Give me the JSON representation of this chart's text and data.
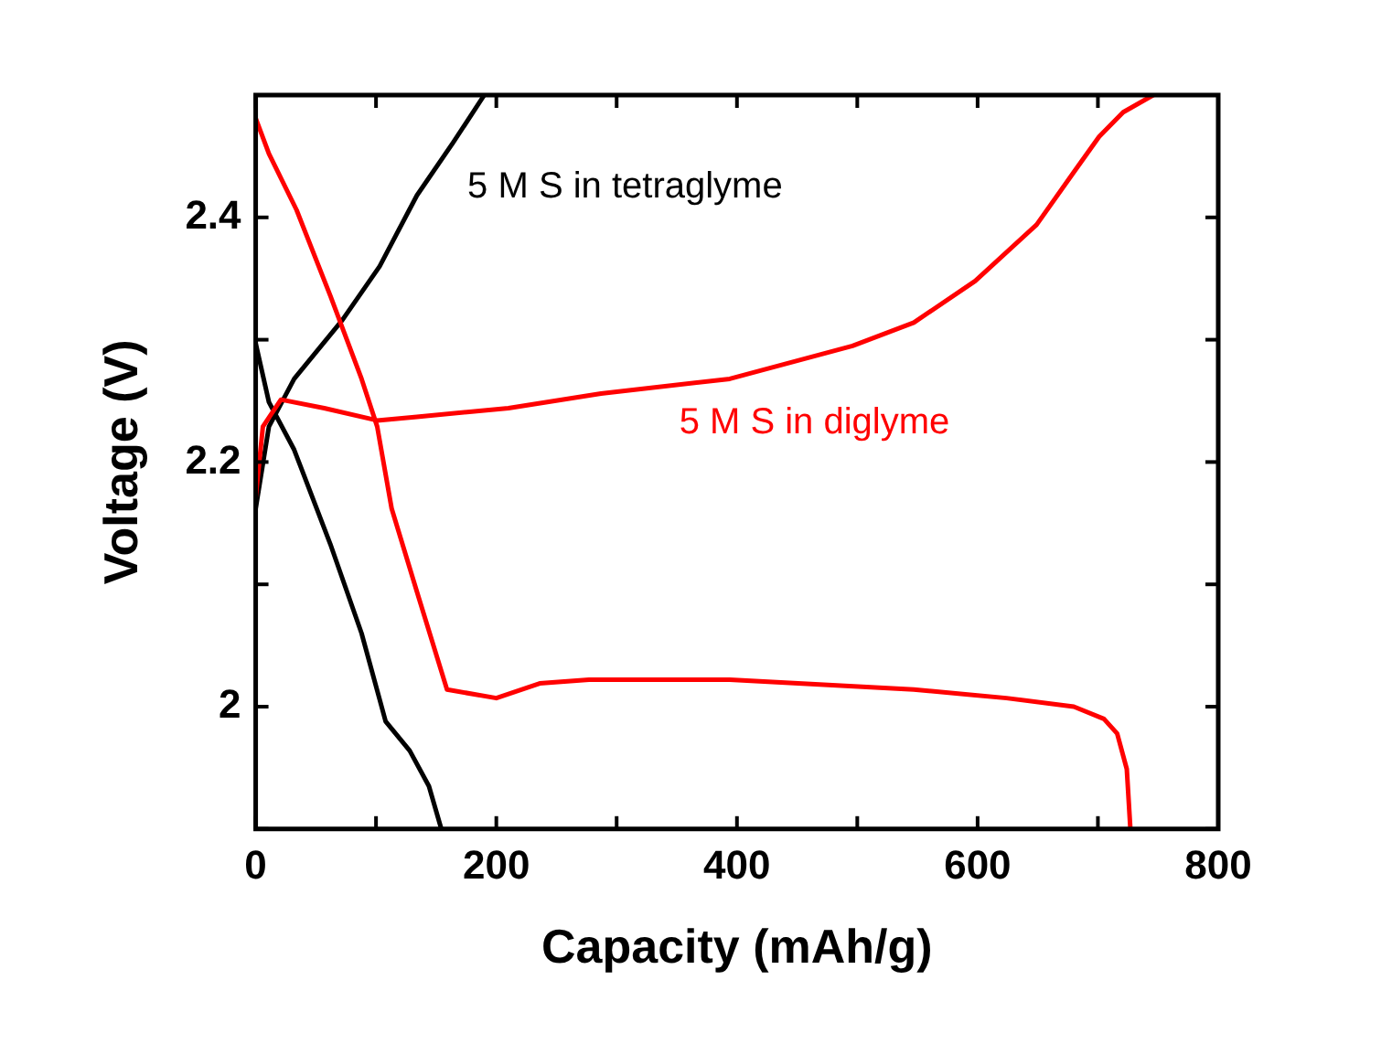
{
  "chart_data": {
    "type": "line",
    "xlabel": "Capacity (mAh/g)",
    "ylabel": "Voltage (V)",
    "xlim": [
      0,
      800
    ],
    "ylim": [
      1.9,
      2.5
    ],
    "xticks": [
      0,
      {
        "value": 100,
        "label": null
      },
      200,
      {
        "value": 300,
        "label": null
      },
      400,
      {
        "value": 500,
        "label": null
      },
      600,
      {
        "value": 700,
        "label": null
      },
      800
    ],
    "yticks": [
      {
        "value": 1.9,
        "label": null
      },
      2.0,
      {
        "value": 2.1,
        "label": null
      },
      2.2,
      {
        "value": 2.3,
        "label": null
      },
      2.4,
      {
        "value": 2.5,
        "label": null
      }
    ],
    "marker": "none",
    "line_style": "solid",
    "series": [
      {
        "color": "#ff0000",
        "x": [
          0,
          11,
          34,
          62,
          88,
          101,
          113,
          134,
          159,
          200,
          236,
          277,
          394,
          547,
          624,
          680,
          705,
          716,
          724,
          727
        ],
        "values": [
          2.481,
          2.452,
          2.406,
          2.336,
          2.268,
          2.229,
          2.162,
          2.094,
          2.014,
          2.007,
          2.019,
          2.022,
          2.022,
          2.014,
          2.007,
          2.0,
          1.99,
          1.978,
          1.949,
          1.9
        ]
      },
      {
        "name": "5 M S in diglyme",
        "color": "#ff0000",
        "x": [
          0,
          6,
          21,
          57,
          101,
          134,
          210,
          287,
          394,
          496,
          547,
          598,
          649,
          680,
          701,
          721,
          746
        ],
        "values": [
          2.171,
          2.229,
          2.251,
          2.244,
          2.234,
          2.237,
          2.244,
          2.256,
          2.268,
          2.295,
          2.314,
          2.348,
          2.394,
          2.437,
          2.466,
          2.486,
          2.5
        ]
      },
      {
        "color": "#000000",
        "x": [
          0,
          11,
          32,
          62,
          88,
          108,
          128,
          144,
          154
        ],
        "values": [
          2.297,
          2.249,
          2.21,
          2.133,
          2.06,
          1.988,
          1.964,
          1.935,
          1.901
        ]
      },
      {
        "name": "5 M S in tetraglyme",
        "color": "#000000",
        "x": [
          0,
          11,
          32,
          72,
          103,
          134,
          164,
          190
        ],
        "values": [
          2.162,
          2.229,
          2.268,
          2.316,
          2.36,
          2.418,
          2.461,
          2.5
        ]
      }
    ]
  }
}
